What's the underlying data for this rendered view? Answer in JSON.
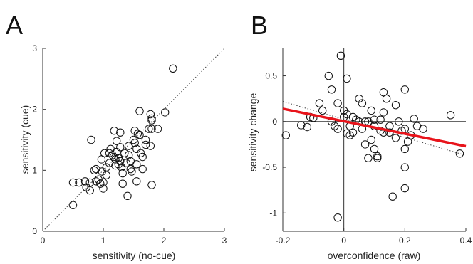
{
  "chart_data": [
    {
      "panel": "A",
      "type": "scatter",
      "xlabel": "sensitivity (no-cue)",
      "ylabel": "sensitivity (cue)",
      "xlim": [
        0,
        3
      ],
      "ylim": [
        0,
        3
      ],
      "xticks": [
        "0",
        "1",
        "2",
        "3"
      ],
      "yticks": [
        "0",
        "1",
        "2",
        "3"
      ],
      "identity_line": true,
      "points": [
        [
          0.5,
          0.43
        ],
        [
          0.5,
          0.8
        ],
        [
          0.6,
          0.8
        ],
        [
          0.72,
          0.72
        ],
        [
          0.7,
          0.82
        ],
        [
          0.78,
          0.8
        ],
        [
          0.78,
          0.67
        ],
        [
          0.8,
          1.5
        ],
        [
          0.85,
          1.0
        ],
        [
          0.88,
          1.02
        ],
        [
          0.88,
          0.82
        ],
        [
          0.92,
          0.85
        ],
        [
          0.95,
          0.78
        ],
        [
          0.97,
          1.18
        ],
        [
          0.98,
          0.98
        ],
        [
          1.0,
          0.8
        ],
        [
          1.0,
          0.7
        ],
        [
          1.02,
          1.28
        ],
        [
          1.05,
          1.05
        ],
        [
          1.05,
          0.92
        ],
        [
          1.1,
          1.28
        ],
        [
          1.1,
          1.12
        ],
        [
          1.12,
          1.35
        ],
        [
          1.15,
          1.25
        ],
        [
          1.17,
          1.22
        ],
        [
          1.18,
          1.65
        ],
        [
          1.2,
          1.18
        ],
        [
          1.2,
          1.08
        ],
        [
          1.22,
          1.48
        ],
        [
          1.22,
          1.3
        ],
        [
          1.25,
          1.2
        ],
        [
          1.25,
          1.1
        ],
        [
          1.28,
          1.62
        ],
        [
          1.28,
          1.38
        ],
        [
          1.28,
          1.15
        ],
        [
          1.3,
          1.05
        ],
        [
          1.32,
          0.95
        ],
        [
          1.32,
          0.78
        ],
        [
          1.35,
          1.28
        ],
        [
          1.38,
          1.12
        ],
        [
          1.4,
          0.58
        ],
        [
          1.42,
          1.4
        ],
        [
          1.42,
          1.25
        ],
        [
          1.45,
          1.15
        ],
        [
          1.45,
          1.02
        ],
        [
          1.47,
          0.98
        ],
        [
          1.5,
          1.5
        ],
        [
          1.52,
          1.65
        ],
        [
          1.52,
          1.45
        ],
        [
          1.55,
          1.35
        ],
        [
          1.55,
          1.1
        ],
        [
          1.55,
          0.82
        ],
        [
          1.57,
          1.6
        ],
        [
          1.6,
          1.97
        ],
        [
          1.6,
          1.58
        ],
        [
          1.62,
          1.28
        ],
        [
          1.65,
          1.22
        ],
        [
          1.65,
          1.02
        ],
        [
          1.7,
          1.5
        ],
        [
          1.7,
          1.42
        ],
        [
          1.75,
          1.68
        ],
        [
          1.78,
          1.92
        ],
        [
          1.78,
          1.4
        ],
        [
          1.8,
          1.85
        ],
        [
          1.8,
          1.82
        ],
        [
          1.8,
          1.68
        ],
        [
          1.8,
          0.76
        ],
        [
          1.9,
          1.68
        ],
        [
          2.02,
          1.95
        ],
        [
          2.15,
          2.67
        ]
      ]
    },
    {
      "panel": "B",
      "type": "scatter",
      "xlabel": "overconfidence (raw)",
      "ylabel": "sensitivity change",
      "xlim": [
        -0.2,
        0.4
      ],
      "ylim": [
        -1.2,
        0.8
      ],
      "xticks": [
        "-0.2",
        "0",
        "0.2",
        "0.4"
      ],
      "yticks": [
        "-1",
        "-0.5",
        "0",
        "0.5"
      ],
      "zero_lines": true,
      "fit_line": {
        "color": "#e8141b",
        "x": [
          -0.2,
          0.4
        ],
        "y": [
          0.14,
          -0.27
        ]
      },
      "dotted_line": {
        "x": [
          -0.2,
          0.4
        ],
        "y": [
          0.22,
          -0.37
        ]
      },
      "points": [
        [
          -0.19,
          -0.15
        ],
        [
          -0.14,
          -0.04
        ],
        [
          -0.12,
          -0.06
        ],
        [
          -0.11,
          0.05
        ],
        [
          -0.1,
          0.04
        ],
        [
          -0.08,
          0.2
        ],
        [
          -0.07,
          0.12
        ],
        [
          -0.05,
          0.5
        ],
        [
          -0.04,
          0.35
        ],
        [
          -0.04,
          0.0
        ],
        [
          -0.03,
          -0.05
        ],
        [
          -0.02,
          0.2
        ],
        [
          -0.02,
          -0.08
        ],
        [
          -0.02,
          -1.05
        ],
        [
          -0.01,
          0.72
        ],
        [
          0.0,
          0.12
        ],
        [
          0.0,
          0.05
        ],
        [
          0.01,
          0.47
        ],
        [
          0.01,
          0.08
        ],
        [
          0.01,
          -0.13
        ],
        [
          0.02,
          -0.05
        ],
        [
          0.02,
          -0.15
        ],
        [
          0.03,
          0.05
        ],
        [
          0.03,
          -0.12
        ],
        [
          0.04,
          0.02
        ],
        [
          0.05,
          0.25
        ],
        [
          0.05,
          0.0
        ],
        [
          0.06,
          0.2
        ],
        [
          0.06,
          -0.08
        ],
        [
          0.07,
          0.0
        ],
        [
          0.07,
          -0.25
        ],
        [
          0.08,
          0.0
        ],
        [
          0.08,
          -0.4
        ],
        [
          0.09,
          0.12
        ],
        [
          0.09,
          -0.2
        ],
        [
          0.1,
          0.02
        ],
        [
          0.1,
          -0.05
        ],
        [
          0.1,
          -0.3
        ],
        [
          0.11,
          -0.4
        ],
        [
          0.11,
          -0.38
        ],
        [
          0.12,
          0.02
        ],
        [
          0.12,
          -0.1
        ],
        [
          0.13,
          0.32
        ],
        [
          0.13,
          0.1
        ],
        [
          0.13,
          -0.12
        ],
        [
          0.14,
          0.25
        ],
        [
          0.15,
          -0.05
        ],
        [
          0.15,
          -0.12
        ],
        [
          0.16,
          -0.82
        ],
        [
          0.17,
          0.18
        ],
        [
          0.17,
          -0.18
        ],
        [
          0.18,
          0.0
        ],
        [
          0.19,
          -0.1
        ],
        [
          0.2,
          0.35
        ],
        [
          0.2,
          -0.08
        ],
        [
          0.2,
          -0.3
        ],
        [
          0.2,
          -0.5
        ],
        [
          0.2,
          -0.73
        ],
        [
          0.21,
          -0.22
        ],
        [
          0.22,
          -0.15
        ],
        [
          0.23,
          0.03
        ],
        [
          0.24,
          -0.05
        ],
        [
          0.26,
          -0.08
        ],
        [
          0.35,
          0.07
        ],
        [
          0.38,
          -0.35
        ]
      ]
    }
  ]
}
